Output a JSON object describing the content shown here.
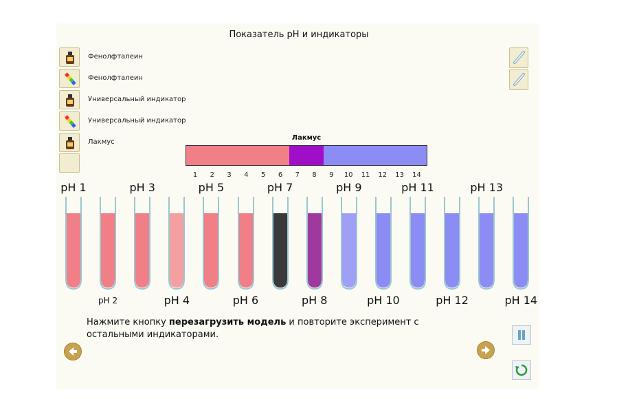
{
  "title": "Показатель pH и индикаторы",
  "indicators": [
    {
      "label": "Фенолфталеин",
      "icon": "bottle-icon"
    },
    {
      "label": "Фенолфталеин",
      "icon": "test-strip-icon"
    },
    {
      "label": "Универсальный индикатор",
      "icon": "bottle-icon"
    },
    {
      "label": "Универсальный индикатор",
      "icon": "test-strip-icon"
    },
    {
      "label": "Лакмус",
      "icon": "bottle-icon"
    }
  ],
  "scale": {
    "title": "Лакмус",
    "numbers": [
      "1",
      "2",
      "3",
      "4",
      "5",
      "6",
      "7",
      "8",
      "9",
      "10",
      "11",
      "12",
      "13",
      "14"
    ],
    "colors": {
      "acid": "#f07f88",
      "neutral": "#a10ec9",
      "base": "#8c8cf5"
    }
  },
  "tubes_top_labels": [
    "pH 1",
    "pH 3",
    "pH 5",
    "pH 7",
    "pH 9",
    "pH 11",
    "pH 13"
  ],
  "tubes_bottom_labels": [
    "pH 2",
    "pH 4",
    "pH 6",
    "pH 8",
    "pH 10",
    "pH 12",
    "pH 14"
  ],
  "tube_colors": [
    "#f07f88",
    "#f07f88",
    "#f07f88",
    "#f4a0a0",
    "#f07f88",
    "#f07f88",
    "#3a3a3a",
    "#a0399e",
    "#9f9ff5",
    "#8c8cf5",
    "#8c8cf5",
    "#8c8cf5",
    "#8c8cf5",
    "#8c8cf5"
  ],
  "instruction": {
    "prefix": "Нажмите кнопку ",
    "bold": "перезагрузить модель",
    "suffix": " и повторите эксперимент с остальными индикаторами."
  }
}
